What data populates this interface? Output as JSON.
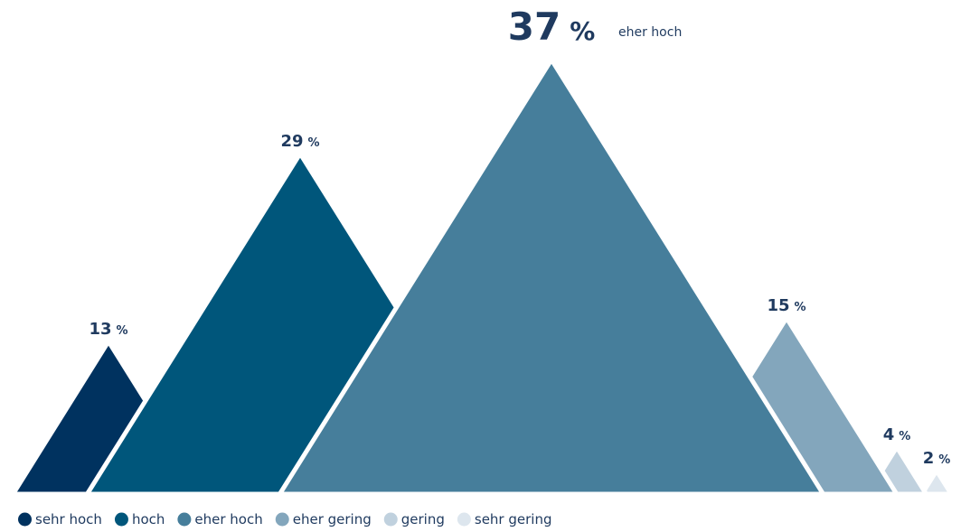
{
  "chart_data": {
    "type": "bar",
    "title": "",
    "xlabel": "",
    "ylabel": "",
    "ylim": [
      0,
      37
    ],
    "grid": false,
    "legend_placement": "bottom-left",
    "percent_symbol": "%",
    "categories": [
      "sehr hoch",
      "hoch",
      "eher hoch",
      "eher gering",
      "gering",
      "sehr gering"
    ],
    "values": [
      13,
      29,
      37,
      15,
      4,
      2
    ],
    "colors": [
      "#00325f",
      "#00567b",
      "#467e9b",
      "#83a6bc",
      "#c0d1de",
      "#dde6ee"
    ],
    "highlight": {
      "category_index": 2,
      "label": "eher hoch"
    }
  }
}
